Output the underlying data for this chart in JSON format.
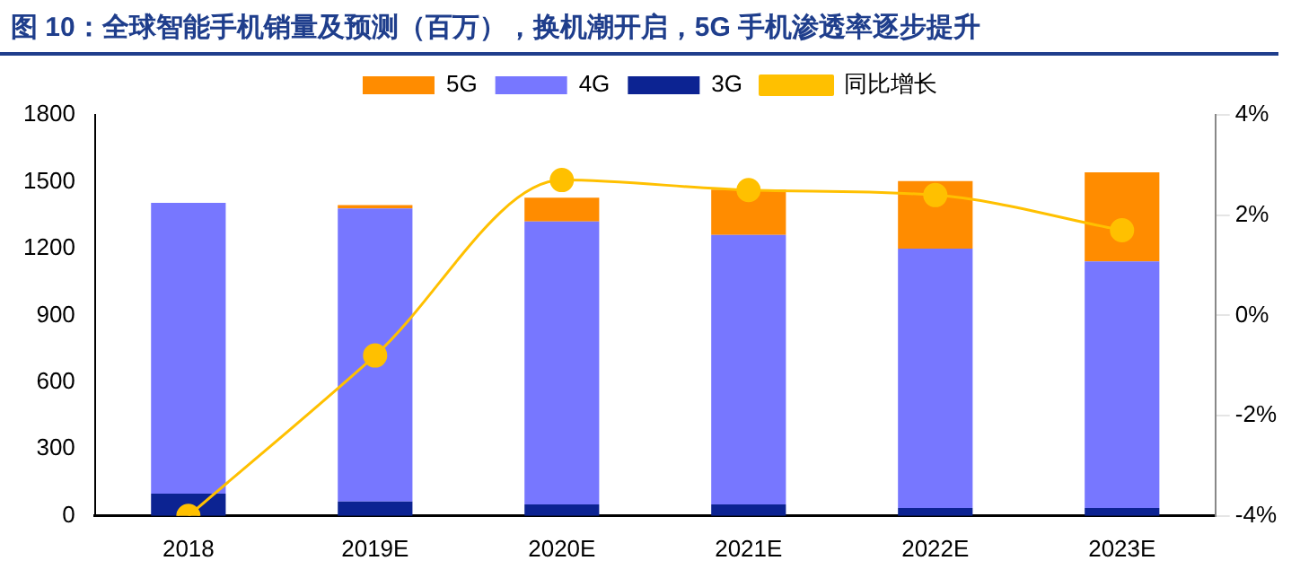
{
  "chart_data": {
    "type": "bar",
    "title": "图 10：全球智能手机销量及预测（百万），换机潮开启，5G 手机渗透率逐步提升",
    "categories": [
      "2018",
      "2019E",
      "2020E",
      "2021E",
      "2022E",
      "2023E"
    ],
    "stacked": true,
    "legend": "top",
    "grid": false,
    "ylim": [
      0,
      1800
    ],
    "yticks": [
      0,
      300,
      600,
      900,
      1200,
      1500,
      1800
    ],
    "y2lim": [
      -4,
      4
    ],
    "y2ticks": [
      {
        "value": -4,
        "label": "-4%"
      },
      {
        "value": -2,
        "label": "-2%"
      },
      {
        "value": 0,
        "label": "0%"
      },
      {
        "value": 2,
        "label": "2%"
      },
      {
        "value": 4,
        "label": "4%"
      }
    ],
    "series": [
      {
        "name": "3G",
        "color": "#0c2392",
        "values": [
          100,
          65,
          52,
          52,
          35,
          35
        ]
      },
      {
        "name": "4G",
        "color": "#7777ff",
        "values": [
          1305,
          1315,
          1270,
          1209,
          1165,
          1107
        ]
      },
      {
        "name": "5G",
        "color": "#ff8c00",
        "values": [
          0,
          15,
          106,
          204,
          303,
          400
        ]
      },
      {
        "name": "同比增长",
        "type": "line",
        "axis": "y2",
        "marker": "circle",
        "color": "#ffc000",
        "values": [
          -4,
          -0.8,
          2.7,
          2.5,
          2.4,
          1.7
        ]
      }
    ]
  }
}
